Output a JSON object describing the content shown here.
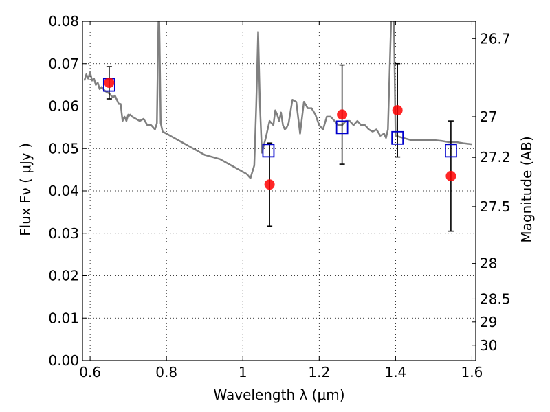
{
  "chart_data": {
    "type": "scatter",
    "xlabel": "Wavelength  λ (μm)",
    "ylabel": "Flux  Fν  ( μJy )",
    "y2label": "Magnitude (AB)",
    "xlim": [
      0.58,
      1.61
    ],
    "ylim": [
      0.0,
      0.08
    ],
    "x_ticks": [
      0.6,
      0.8,
      1.0,
      1.2,
      1.4,
      1.6
    ],
    "x_tick_labels": [
      "0.6",
      "0.8",
      "1",
      "1.2",
      "1.4",
      "1.6"
    ],
    "y_ticks": [
      0.0,
      0.01,
      0.02,
      0.03,
      0.04,
      0.05,
      0.06,
      0.07,
      0.08
    ],
    "y_tick_labels": [
      "0.00",
      "0.01",
      "0.02",
      "0.03",
      "0.04",
      "0.05",
      "0.06",
      "0.07",
      "0.08"
    ],
    "y2_ticks": [
      {
        "label": "26.7",
        "flux": 0.0759
      },
      {
        "label": "27",
        "flux": 0.0575
      },
      {
        "label": "27.2",
        "flux": 0.0479
      },
      {
        "label": "27.5",
        "flux": 0.0363
      },
      {
        "label": "28",
        "flux": 0.0229
      },
      {
        "label": "28.5",
        "flux": 0.0145
      },
      {
        "label": "29",
        "flux": 0.0091
      },
      {
        "label": "30",
        "flux": 0.0036
      }
    ],
    "grid": true,
    "colors": {
      "model": "#808080",
      "observed": "#ff0000",
      "synthetic": "#0000cc",
      "errorbar": "#000000"
    },
    "series": [
      {
        "kind": "line",
        "x": [
          0.585,
          0.59,
          0.595,
          0.6,
          0.605,
          0.61,
          0.615,
          0.62,
          0.625,
          0.63,
          0.64,
          0.65,
          0.66,
          0.665,
          0.67,
          0.675,
          0.68,
          0.685,
          0.69,
          0.695,
          0.7,
          0.7,
          0.705,
          0.71,
          0.72,
          0.73,
          0.74,
          0.75,
          0.76,
          0.77,
          0.775,
          0.778,
          0.78,
          0.782,
          0.785,
          0.79,
          0.8,
          0.82,
          0.84,
          0.86,
          0.88,
          0.9,
          0.92,
          0.94,
          0.96,
          0.98,
          1.0,
          1.01,
          1.02,
          1.03,
          1.035,
          1.04,
          1.045,
          1.05,
          1.06,
          1.07,
          1.08,
          1.085,
          1.09,
          1.095,
          1.1,
          1.105,
          1.11,
          1.115,
          1.12,
          1.13,
          1.14,
          1.15,
          1.16,
          1.17,
          1.18,
          1.19,
          1.2,
          1.21,
          1.22,
          1.23,
          1.24,
          1.25,
          1.26,
          1.27,
          1.28,
          1.29,
          1.3,
          1.31,
          1.32,
          1.33,
          1.34,
          1.35,
          1.36,
          1.37,
          1.375,
          1.38,
          1.39,
          1.395,
          1.4,
          1.42,
          1.44,
          1.46,
          1.48,
          1.5,
          1.52,
          1.54,
          1.56,
          1.58,
          1.6
        ],
        "y": [
          0.066,
          0.0675,
          0.0665,
          0.068,
          0.066,
          0.0665,
          0.065,
          0.0655,
          0.064,
          0.0645,
          0.0635,
          0.063,
          0.062,
          0.0625,
          0.0615,
          0.0605,
          0.0605,
          0.0565,
          0.0575,
          0.0565,
          0.058,
          0.0575,
          0.058,
          0.0575,
          0.057,
          0.0565,
          0.057,
          0.0555,
          0.0555,
          0.0545,
          0.056,
          0.075,
          0.085,
          0.075,
          0.056,
          0.054,
          0.0535,
          0.0525,
          0.0515,
          0.0505,
          0.0495,
          0.0485,
          0.048,
          0.0475,
          0.0465,
          0.0455,
          0.0445,
          0.044,
          0.043,
          0.046,
          0.06,
          0.0775,
          0.06,
          0.049,
          0.0525,
          0.0565,
          0.0555,
          0.059,
          0.058,
          0.0565,
          0.0585,
          0.0555,
          0.0545,
          0.055,
          0.056,
          0.0615,
          0.061,
          0.0535,
          0.061,
          0.0595,
          0.0595,
          0.058,
          0.0555,
          0.0545,
          0.0575,
          0.0575,
          0.0565,
          0.0555,
          0.0555,
          0.0565,
          0.0565,
          0.0555,
          0.0565,
          0.0555,
          0.0555,
          0.0545,
          0.054,
          0.0545,
          0.053,
          0.0535,
          0.0525,
          0.0545,
          0.085,
          0.085,
          0.053,
          0.0525,
          0.052,
          0.052,
          0.052,
          0.052,
          0.0518,
          0.0515,
          0.0515,
          0.0512,
          0.051
        ]
      },
      {
        "kind": "markers",
        "marker": "circle",
        "x": [
          0.65,
          1.07,
          1.26,
          1.405,
          1.545
        ],
        "y": [
          0.0655,
          0.0415,
          0.058,
          0.059,
          0.0435
        ],
        "yerr": [
          0.0038,
          0.0098,
          0.0117,
          0.011,
          0.013
        ]
      },
      {
        "kind": "markers",
        "marker": "square",
        "x": [
          0.65,
          1.067,
          1.26,
          1.405,
          1.545
        ],
        "y": [
          0.065,
          0.0495,
          0.055,
          0.0525,
          0.0495
        ]
      }
    ]
  }
}
